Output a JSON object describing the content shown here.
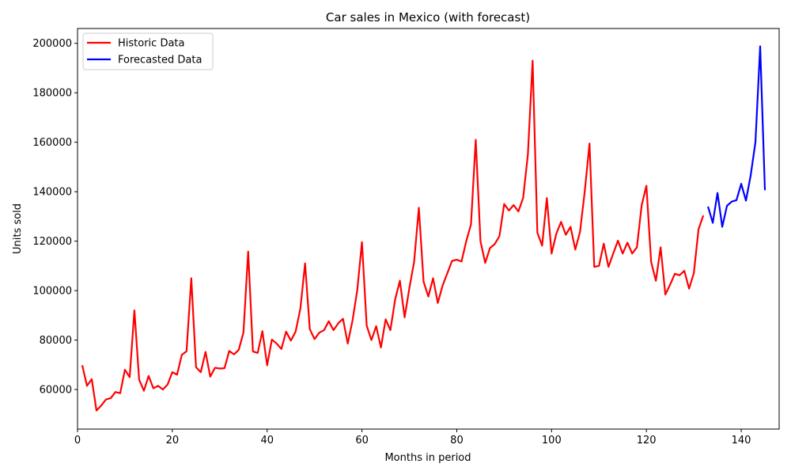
{
  "chart_data": {
    "type": "line",
    "title": "Car sales in Mexico (with forecast)",
    "xlabel": "Months in period",
    "ylabel": "Units sold",
    "xlim": [
      0,
      148
    ],
    "ylim": [
      44000,
      206000
    ],
    "xticks": [
      0,
      20,
      40,
      60,
      80,
      100,
      120,
      140
    ],
    "yticks": [
      60000,
      80000,
      100000,
      120000,
      140000,
      160000,
      180000,
      200000
    ],
    "grid": false,
    "legend_position": "top-left",
    "series": [
      {
        "name": "Historic Data",
        "color": "#ff0000",
        "x": [
          1,
          2,
          3,
          4,
          5,
          6,
          7,
          8,
          9,
          10,
          11,
          12,
          13,
          14,
          15,
          16,
          17,
          18,
          19,
          20,
          21,
          22,
          23,
          24,
          25,
          26,
          27,
          28,
          29,
          30,
          31,
          32,
          33,
          34,
          35,
          36,
          37,
          38,
          39,
          40,
          41,
          42,
          43,
          44,
          45,
          46,
          47,
          48,
          49,
          50,
          51,
          52,
          53,
          54,
          55,
          56,
          57,
          58,
          59,
          60,
          61,
          62,
          63,
          64,
          65,
          66,
          67,
          68,
          69,
          70,
          71,
          72,
          73,
          74,
          75,
          76,
          77,
          78,
          79,
          80,
          81,
          82,
          83,
          84,
          85,
          86,
          87,
          88,
          89,
          90,
          91,
          92,
          93,
          94,
          95,
          96,
          97,
          98,
          99,
          100,
          101,
          102,
          103,
          104,
          105,
          106,
          107,
          108,
          109,
          110,
          111,
          112,
          113,
          114,
          115,
          116,
          117,
          118,
          119,
          120,
          121,
          122,
          123,
          124,
          125,
          126,
          127,
          128,
          129,
          130,
          131,
          132
        ],
        "y": [
          69800,
          61500,
          64200,
          51500,
          53500,
          56000,
          56500,
          59000,
          58500,
          68000,
          65000,
          92000,
          64000,
          59500,
          65500,
          60500,
          61500,
          60000,
          62000,
          67000,
          66000,
          74000,
          75500,
          105000,
          69000,
          67000,
          75200,
          65200,
          68800,
          68500,
          68600,
          75600,
          74200,
          76000,
          83000,
          115800,
          75400,
          74800,
          83600,
          69800,
          80200,
          78600,
          76400,
          83400,
          79800,
          83400,
          92600,
          111000,
          84400,
          80400,
          83000,
          84000,
          87600,
          84000,
          86800,
          88600,
          78600,
          87800,
          100000,
          119600,
          85800,
          80000,
          85600,
          77000,
          88400,
          84000,
          96400,
          104000,
          89200,
          101000,
          111600,
          133500,
          103600,
          97600,
          105000,
          95000,
          102000,
          107000,
          112000,
          112500,
          111800,
          120000,
          126800,
          161000,
          120000,
          111200,
          117200,
          118800,
          122000,
          135000,
          132400,
          134600,
          132000,
          137500,
          155000,
          193000,
          123500,
          118200,
          137400,
          115000,
          123000,
          127800,
          122600,
          125800,
          116600,
          123800,
          140200,
          159500,
          109600,
          110000,
          119000,
          109600,
          115000,
          120200,
          115000,
          119400,
          115000,
          117500,
          134500,
          142400,
          111600,
          104000,
          117500,
          98400,
          102400,
          106800,
          106200,
          108000,
          100800,
          107000,
          124800,
          130400
        ]
      },
      {
        "name": "Forecasted Data",
        "color": "#0000ff",
        "x": [
          133,
          134,
          135,
          136,
          137,
          138,
          139,
          140,
          141,
          142,
          143,
          144,
          145
        ],
        "y": [
          134000,
          127400,
          139500,
          125800,
          134300,
          136000,
          136600,
          143200,
          136400,
          146600,
          160000,
          198800,
          140600
        ]
      }
    ]
  }
}
